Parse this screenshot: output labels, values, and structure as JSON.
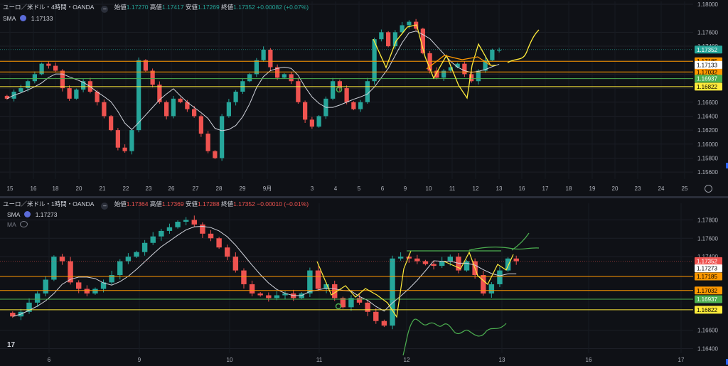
{
  "top": {
    "title": "ユーロ／米ドル・4時間・OANDA",
    "ohlc": [
      {
        "k": "始値",
        "v": "1.17270"
      },
      {
        "k": "高値",
        "v": "1.17417"
      },
      {
        "k": "安値",
        "v": "1.17269"
      },
      {
        "k": "終値",
        "v": "1.17352"
      }
    ],
    "change": "+0.00082 (+0.07%)",
    "sma_label": "SMA",
    "sma_value": "1.17133"
  },
  "bottom": {
    "title": "ユーロ／米ドル・1時間・OANDA",
    "ohlc": [
      {
        "k": "始値",
        "v": "1.17364"
      },
      {
        "k": "高値",
        "v": "1.17369"
      },
      {
        "k": "安値",
        "v": "1.17288"
      },
      {
        "k": "終値",
        "v": "1.17352"
      }
    ],
    "change": "−0.00010 (−0.01%)",
    "sma_label": "SMA",
    "sma_value": "1.17273",
    "ma_label": "MA",
    "corner_mark": "17"
  },
  "colors": {
    "bull": "#26a69a",
    "bear": "#ef5350",
    "orange": "#ff9800",
    "yellow": "#ffeb3b",
    "green_tag": "#4caf50",
    "sma": "#d1d4dc",
    "accent": "#2962ff",
    "bg": "#0f1116"
  },
  "chart_data": [
    {
      "type": "candlestick",
      "title": "ユーロ／米ドル・4時間・OANDA",
      "ylim": [
        1.155,
        1.18
      ],
      "y_ticks": [
        "1.18000",
        "1.17600",
        "1.17400",
        "1.17200",
        "1.17000",
        "1.16800",
        "1.16600",
        "1.16400",
        "1.16200",
        "1.16000",
        "1.15800",
        "1.15600"
      ],
      "x_ticks": [
        "15",
        "16",
        "18",
        "20",
        "21",
        "22",
        "23",
        "26",
        "27",
        "28",
        "29",
        "9月",
        "3",
        "4",
        "5",
        "6",
        "9",
        "10",
        "11",
        "12",
        "13",
        "16",
        "17",
        "18",
        "19",
        "20",
        "23",
        "24",
        "25"
      ],
      "close_path": [
        1.1665,
        1.1675,
        1.168,
        1.169,
        1.17,
        1.1715,
        1.1712,
        1.1705,
        1.168,
        1.1665,
        1.1678,
        1.169,
        1.1675,
        1.166,
        1.164,
        1.162,
        1.1595,
        1.159,
        1.162,
        1.172,
        1.1705,
        1.1685,
        1.166,
        1.164,
        1.1665,
        1.166,
        1.165,
        1.164,
        1.1615,
        1.159,
        1.158,
        1.164,
        1.166,
        1.1675,
        1.169,
        1.17,
        1.172,
        1.1735,
        1.171,
        1.1695,
        1.17,
        1.169,
        1.166,
        1.1635,
        1.1625,
        1.164,
        1.1665,
        1.169,
        1.168,
        1.166,
        1.165,
        1.166,
        1.169,
        1.175,
        1.176,
        1.174,
        1.176,
        1.177,
        1.1775,
        1.1765,
        1.173,
        1.1705,
        1.1695,
        1.1705,
        1.171,
        1.1715,
        1.17,
        1.169,
        1.1705,
        1.172,
        1.1735,
        1.1735
      ]
    },
    {
      "type": "candlestick",
      "title": "ユーロ／米ドル・1時間・OANDA",
      "ylim": [
        1.1635,
        1.1795
      ],
      "y_ticks": [
        "1.17800",
        "1.17600",
        "1.17400",
        "1.16600",
        "1.16400"
      ],
      "x_ticks": [
        "6",
        "9",
        "10",
        "11",
        "12",
        "13",
        "16",
        "17"
      ],
      "close_path": [
        1.1675,
        1.168,
        1.169,
        1.17,
        1.1715,
        1.174,
        1.1735,
        1.1712,
        1.1705,
        1.17,
        1.1705,
        1.1712,
        1.172,
        1.1735,
        1.174,
        1.1745,
        1.1755,
        1.1762,
        1.1768,
        1.1772,
        1.1778,
        1.178,
        1.1775,
        1.1765,
        1.176,
        1.175,
        1.174,
        1.1725,
        1.171,
        1.17,
        1.1698,
        1.1695,
        1.1698,
        1.17,
        1.1695,
        1.17,
        1.1725,
        1.1705,
        1.171,
        1.1695,
        1.1685,
        1.1695,
        1.169,
        1.168,
        1.167,
        1.1665,
        1.1738,
        1.174,
        1.1738,
        1.1735,
        1.1732,
        1.173,
        1.1735,
        1.174,
        1.1725,
        1.1735,
        1.172,
        1.17,
        1.171,
        1.1725,
        1.1738,
        1.1735
      ]
    }
  ],
  "levels": [
    {
      "price": 1.17185,
      "label": "1.17185",
      "color": "#ff9800",
      "text": "#000000"
    },
    {
      "price": 1.17032,
      "label": "1.17032",
      "color": "#ff9800",
      "text": "#000000"
    },
    {
      "price": 1.16937,
      "label": "1.16937",
      "color": "#4caf50",
      "text": "#ffffff"
    },
    {
      "price": 1.16822,
      "label": "1.16822",
      "color": "#ffeb3b",
      "text": "#000000"
    }
  ],
  "badges": {
    "top_last": {
      "label": "1.17352",
      "color": "#26a69a",
      "text": "#ffffff"
    },
    "top_sma": {
      "label": "1.17133",
      "color": "#ffffff",
      "text": "#000000"
    },
    "bottom_last": {
      "label": "1.17352",
      "color": "#ef5350",
      "text": "#ffffff"
    },
    "bottom_sma": {
      "label": "1.17273",
      "color": "#ffffff",
      "text": "#000000"
    }
  }
}
